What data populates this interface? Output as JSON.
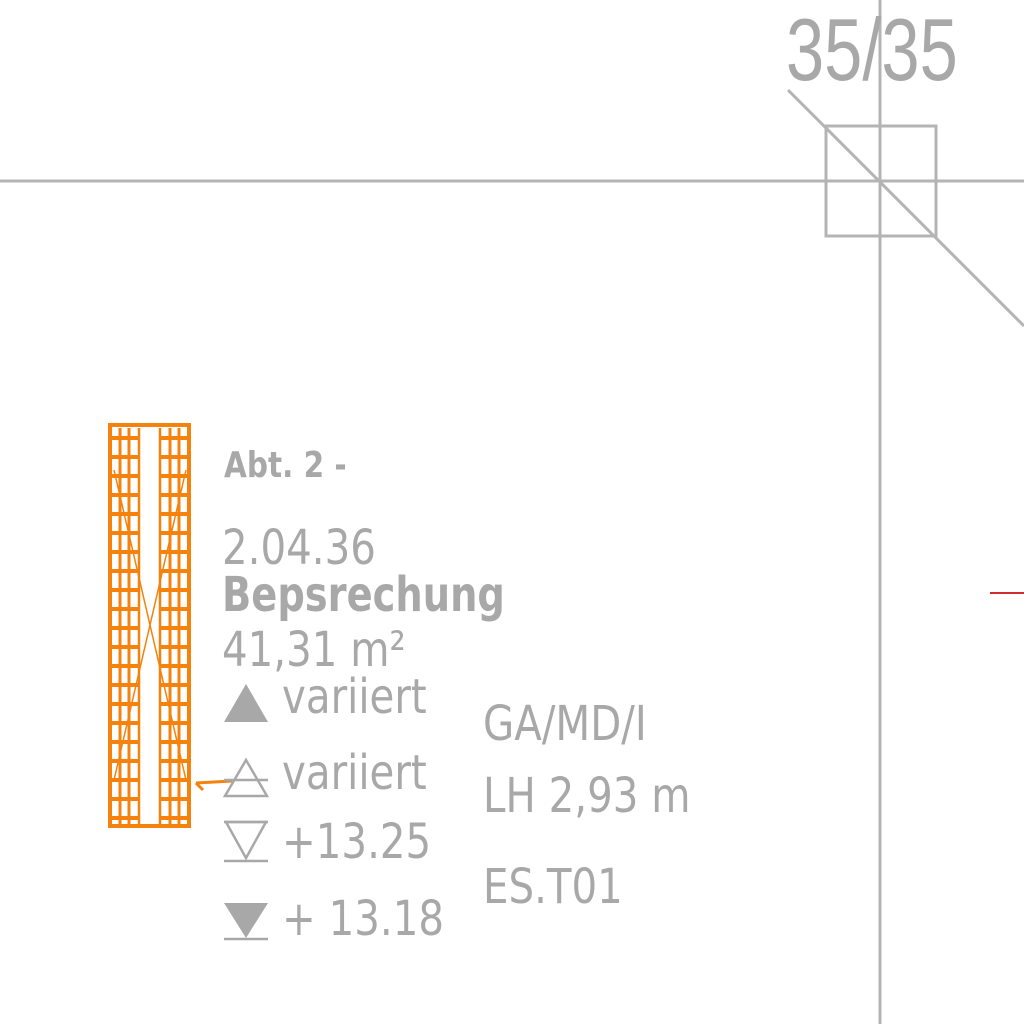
{
  "colors": {
    "text_gray": "#a8a8a8",
    "line_gray": "#b4b4b4",
    "wall_orange": "#f5820d",
    "red_mark": "#d22d2d"
  },
  "grid": {
    "column_label": "35/35"
  },
  "room": {
    "department": "Abt. 2 -",
    "number": "2.04.36",
    "name": "Bepsrechung",
    "area": "41,31 m²",
    "levels": [
      {
        "icon": "filled-up-triangle-icon",
        "value": "variiert"
      },
      {
        "icon": "outline-up-triangle-icon",
        "value": "variiert"
      },
      {
        "icon": "outline-down-triangle-icon",
        "value": "+13.25"
      },
      {
        "icon": "filled-down-triangle-icon",
        "value": "+ 13.18"
      }
    ]
  },
  "codes": [
    "GA/MD/I",
    "LH 2,93 m",
    "ES.T01"
  ]
}
